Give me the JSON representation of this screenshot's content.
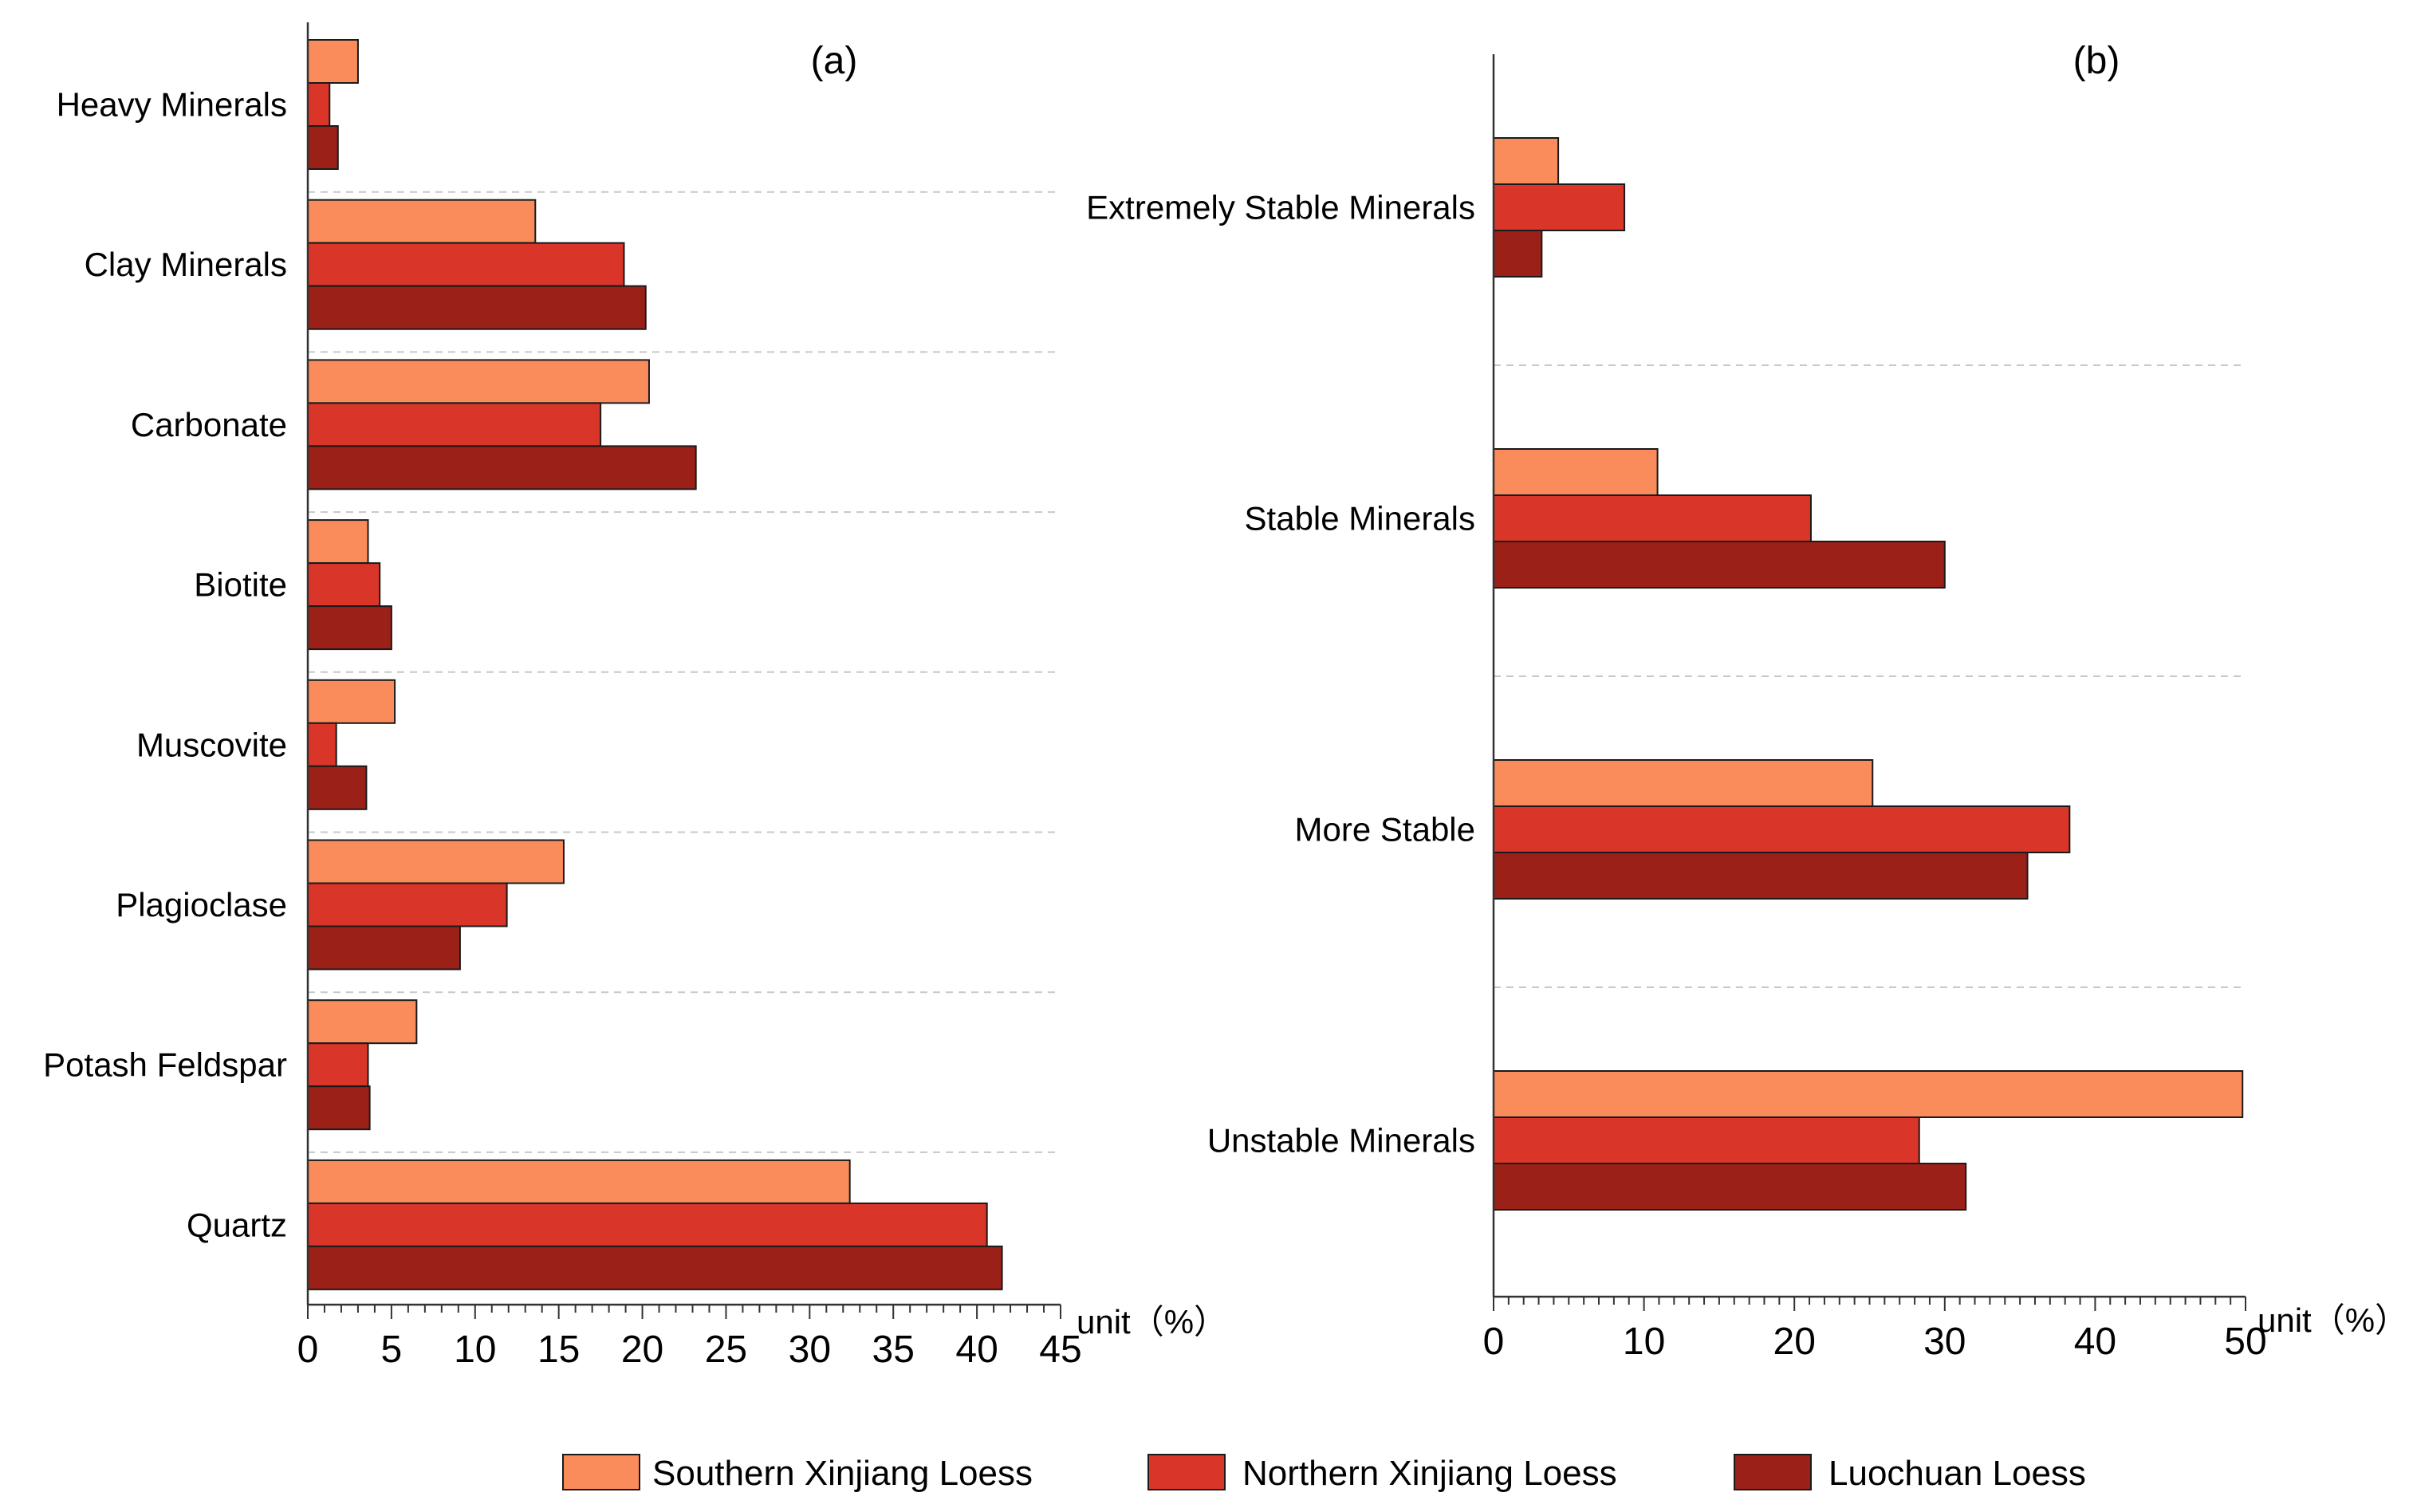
{
  "chart_data": [
    {
      "type": "bar",
      "orientation": "horizontal",
      "panel_label": "(a)",
      "categories": [
        "Heavy Minerals",
        "Clay Minerals",
        "Carbonate",
        "Biotite",
        "Muscovite",
        "Plagioclase",
        "Potash Feldspar",
        "Quartz"
      ],
      "series": [
        {
          "name": "Southern Xinjiang Loess",
          "color": "#FA8C5C",
          "values": [
            3,
            13.6,
            20.4,
            3.6,
            5.2,
            15.3,
            6.5,
            32.4
          ]
        },
        {
          "name": "Northern Xinjiang Loess",
          "color": "#D93529",
          "values": [
            1.3,
            18.9,
            17.5,
            4.3,
            1.7,
            11.9,
            3.6,
            40.6
          ]
        },
        {
          "name": "Luochuan Loess",
          "color": "#9B2118",
          "values": [
            1.8,
            20.2,
            23.2,
            5,
            3.5,
            9.1,
            3.7,
            41.5
          ]
        }
      ],
      "xlim": [
        0,
        45
      ],
      "xticks": [
        0,
        5,
        10,
        15,
        20,
        25,
        30,
        35,
        40,
        45
      ],
      "xlabel": "unit（%）",
      "grid": "dashed separators between categories"
    },
    {
      "type": "bar",
      "orientation": "horizontal",
      "panel_label": "(b)",
      "categories": [
        "Extremely Stable Minerals",
        "Stable Minerals",
        "More Stable",
        "Unstable Minerals"
      ],
      "series": [
        {
          "name": "Southern Xinjiang Loess",
          "color": "#FA8C5C",
          "values": [
            4.3,
            10.9,
            25.2,
            49.8
          ]
        },
        {
          "name": "Northern Xinjiang Loess",
          "color": "#D93529",
          "values": [
            8.7,
            21.1,
            38.3,
            28.3
          ]
        },
        {
          "name": "Luochuan Loess",
          "color": "#9B2118",
          "values": [
            3.2,
            30,
            35.5,
            31.4
          ]
        }
      ],
      "xlim": [
        0,
        50
      ],
      "xticks": [
        0,
        10,
        20,
        30,
        40,
        50
      ],
      "xlabel": "unit（%）",
      "grid": "dashed separators between categories"
    }
  ],
  "legend": {
    "position": "bottom-center",
    "items": [
      {
        "label": "Southern Xinjiang Loess",
        "color": "#FA8C5C"
      },
      {
        "label": "Northern Xinjiang Loess",
        "color": "#D93529"
      },
      {
        "label": "Luochuan Loess",
        "color": "#9B2118"
      }
    ]
  }
}
